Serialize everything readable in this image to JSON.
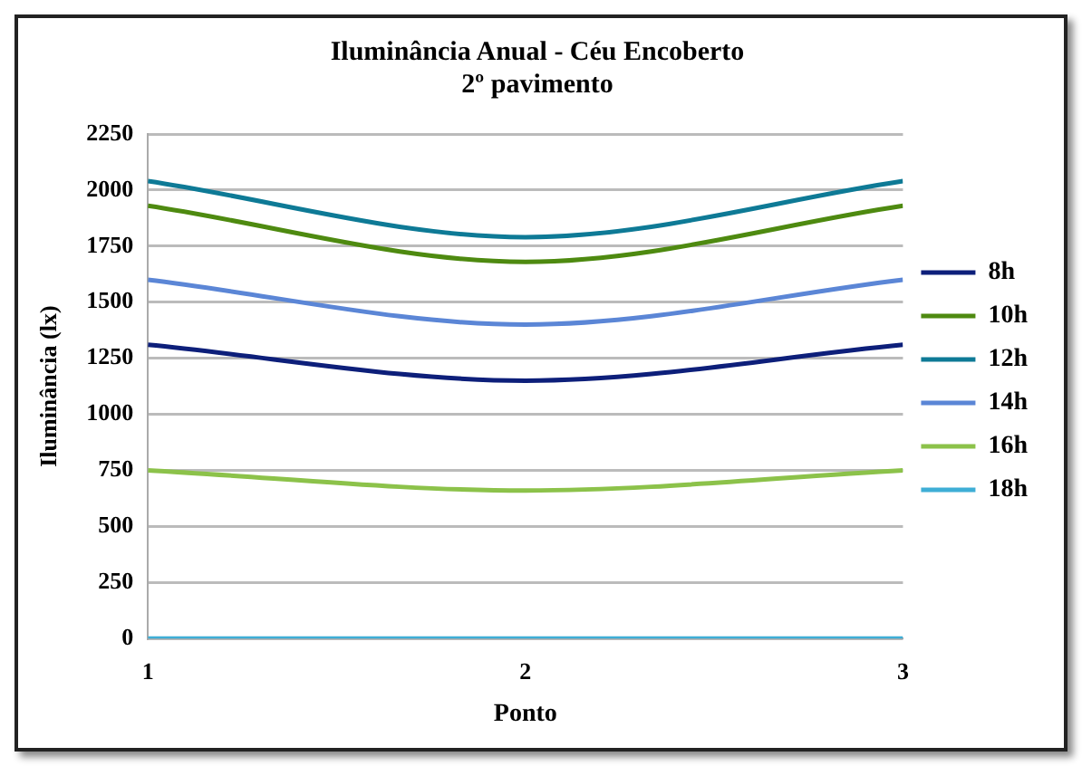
{
  "chart_data": {
    "type": "line",
    "title": "Iluminância Anual - Céu Encoberto",
    "subtitle": "2º pavimento",
    "xlabel": "Ponto",
    "ylabel": "Iluminância (lx)",
    "x": [
      1,
      2,
      3
    ],
    "xlim": [
      1,
      3
    ],
    "xticks": [
      1,
      2,
      3
    ],
    "ylim": [
      0,
      2250
    ],
    "yticks": [
      0,
      250,
      500,
      750,
      1000,
      1250,
      1500,
      1750,
      2000,
      2250
    ],
    "grid": "y",
    "legend": "right",
    "marker": "none",
    "series": [
      {
        "name": "8h",
        "color": "#0d1f7a",
        "values": [
          1310,
          1150,
          1310
        ]
      },
      {
        "name": "10h",
        "color": "#4e8a10",
        "values": [
          1930,
          1680,
          1930
        ]
      },
      {
        "name": "12h",
        "color": "#0e7a96",
        "values": [
          2040,
          1790,
          2040
        ]
      },
      {
        "name": "14h",
        "color": "#5b86d6",
        "values": [
          1600,
          1400,
          1600
        ]
      },
      {
        "name": "16h",
        "color": "#8cc24a",
        "values": [
          750,
          660,
          750
        ]
      },
      {
        "name": "18h",
        "color": "#3eaed6",
        "values": [
          0,
          0,
          0
        ]
      }
    ]
  }
}
